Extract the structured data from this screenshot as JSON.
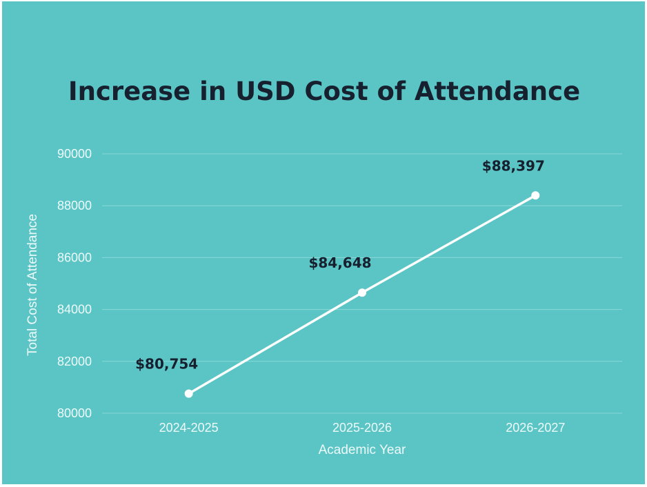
{
  "chart_data": {
    "type": "line",
    "title": "Increase in USD Cost of Attendance",
    "xlabel": "Academic Year",
    "ylabel": "Total Cost of Attendance",
    "categories": [
      "2024-2025",
      "2025-2026",
      "2026-2027"
    ],
    "values": [
      80754,
      84648,
      88397
    ],
    "data_labels": [
      "$80,754",
      "$84,648",
      "$88,397"
    ],
    "ylim": [
      80000,
      90000
    ],
    "yticks": [
      "80000",
      "82000",
      "84000",
      "86000",
      "88000",
      "90000"
    ],
    "grid": "horizontal",
    "colors": {
      "background": "#5bc5c5",
      "line": "#ffffff",
      "title": "#16202e",
      "grid": "#8ad8d8"
    }
  }
}
